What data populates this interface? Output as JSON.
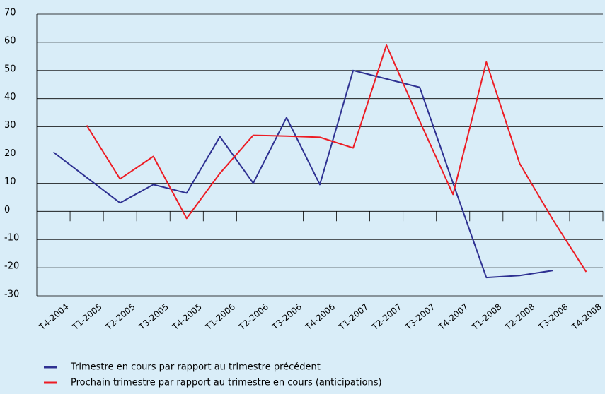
{
  "chart_data": {
    "type": "line",
    "categories": [
      "T4-2004",
      "T1-2005",
      "T2-2005",
      "T3-2005",
      "T4-2005",
      "T1-2006",
      "T2-2006",
      "T3-2006",
      "T4-2006",
      "T1-2007",
      "T2-2007",
      "T3-2007",
      "T4-2007",
      "T1-2008",
      "T2-2008",
      "T3-2008",
      "T4-2008"
    ],
    "series": [
      {
        "name": "Trimestre en cours par rapport au trimestre précédent",
        "color": "#2e3192",
        "values": [
          21,
          12,
          3,
          9.5,
          6.5,
          26.5,
          10,
          33.3,
          9.5,
          50,
          47,
          44,
          10,
          -23.5,
          -22.8,
          -21,
          null
        ]
      },
      {
        "name": "Prochain trimestre par rapport au trimestre en cours (anticipations)",
        "color": "#ed1c24",
        "values": [
          null,
          30.5,
          11.5,
          19.5,
          -2.5,
          13.5,
          27,
          26.7,
          26.3,
          22.5,
          59,
          32,
          6,
          53,
          17,
          -3,
          -21.5
        ]
      }
    ],
    "ylim": [
      -30,
      70
    ],
    "yticks": [
      -30,
      -20,
      -10,
      0,
      10,
      20,
      30,
      40,
      50,
      60,
      70
    ],
    "grid": true
  }
}
